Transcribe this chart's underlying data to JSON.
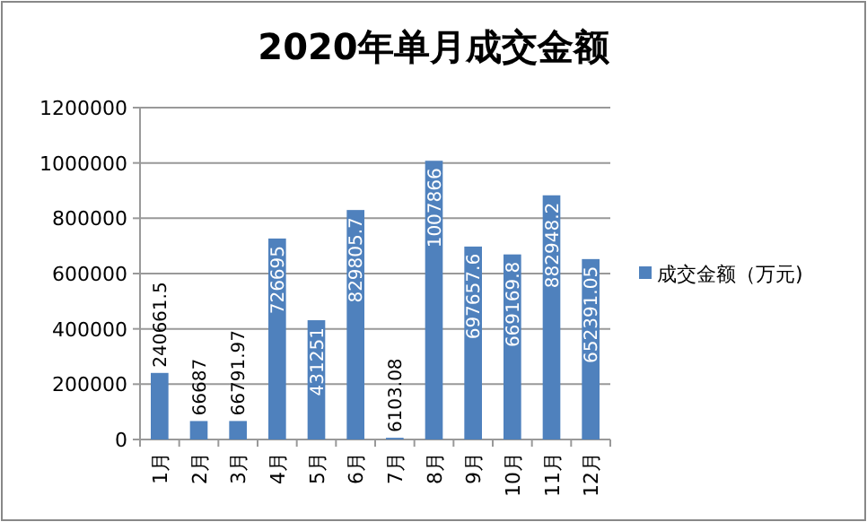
{
  "chart_data": {
    "type": "bar",
    "title": "2020年单月成交金额",
    "categories": [
      "1月",
      "2月",
      "3月",
      "4月",
      "5月",
      "6月",
      "7月",
      "8月",
      "9月",
      "10月",
      "11月",
      "12月"
    ],
    "series": [
      {
        "name": "成交金额（万元)",
        "color": "#4f81bd",
        "values": [
          240661.5,
          66687,
          66791.97,
          726695,
          431251,
          829805.7,
          6103.08,
          1007866,
          697657.6,
          669169.8,
          882948.2,
          652391.05
        ]
      }
    ],
    "data_labels": true,
    "ylim": [
      0,
      1200000
    ],
    "yticks": [
      0,
      200000,
      400000,
      600000,
      800000,
      1000000,
      1200000
    ],
    "grid": "y",
    "legend": "right"
  }
}
